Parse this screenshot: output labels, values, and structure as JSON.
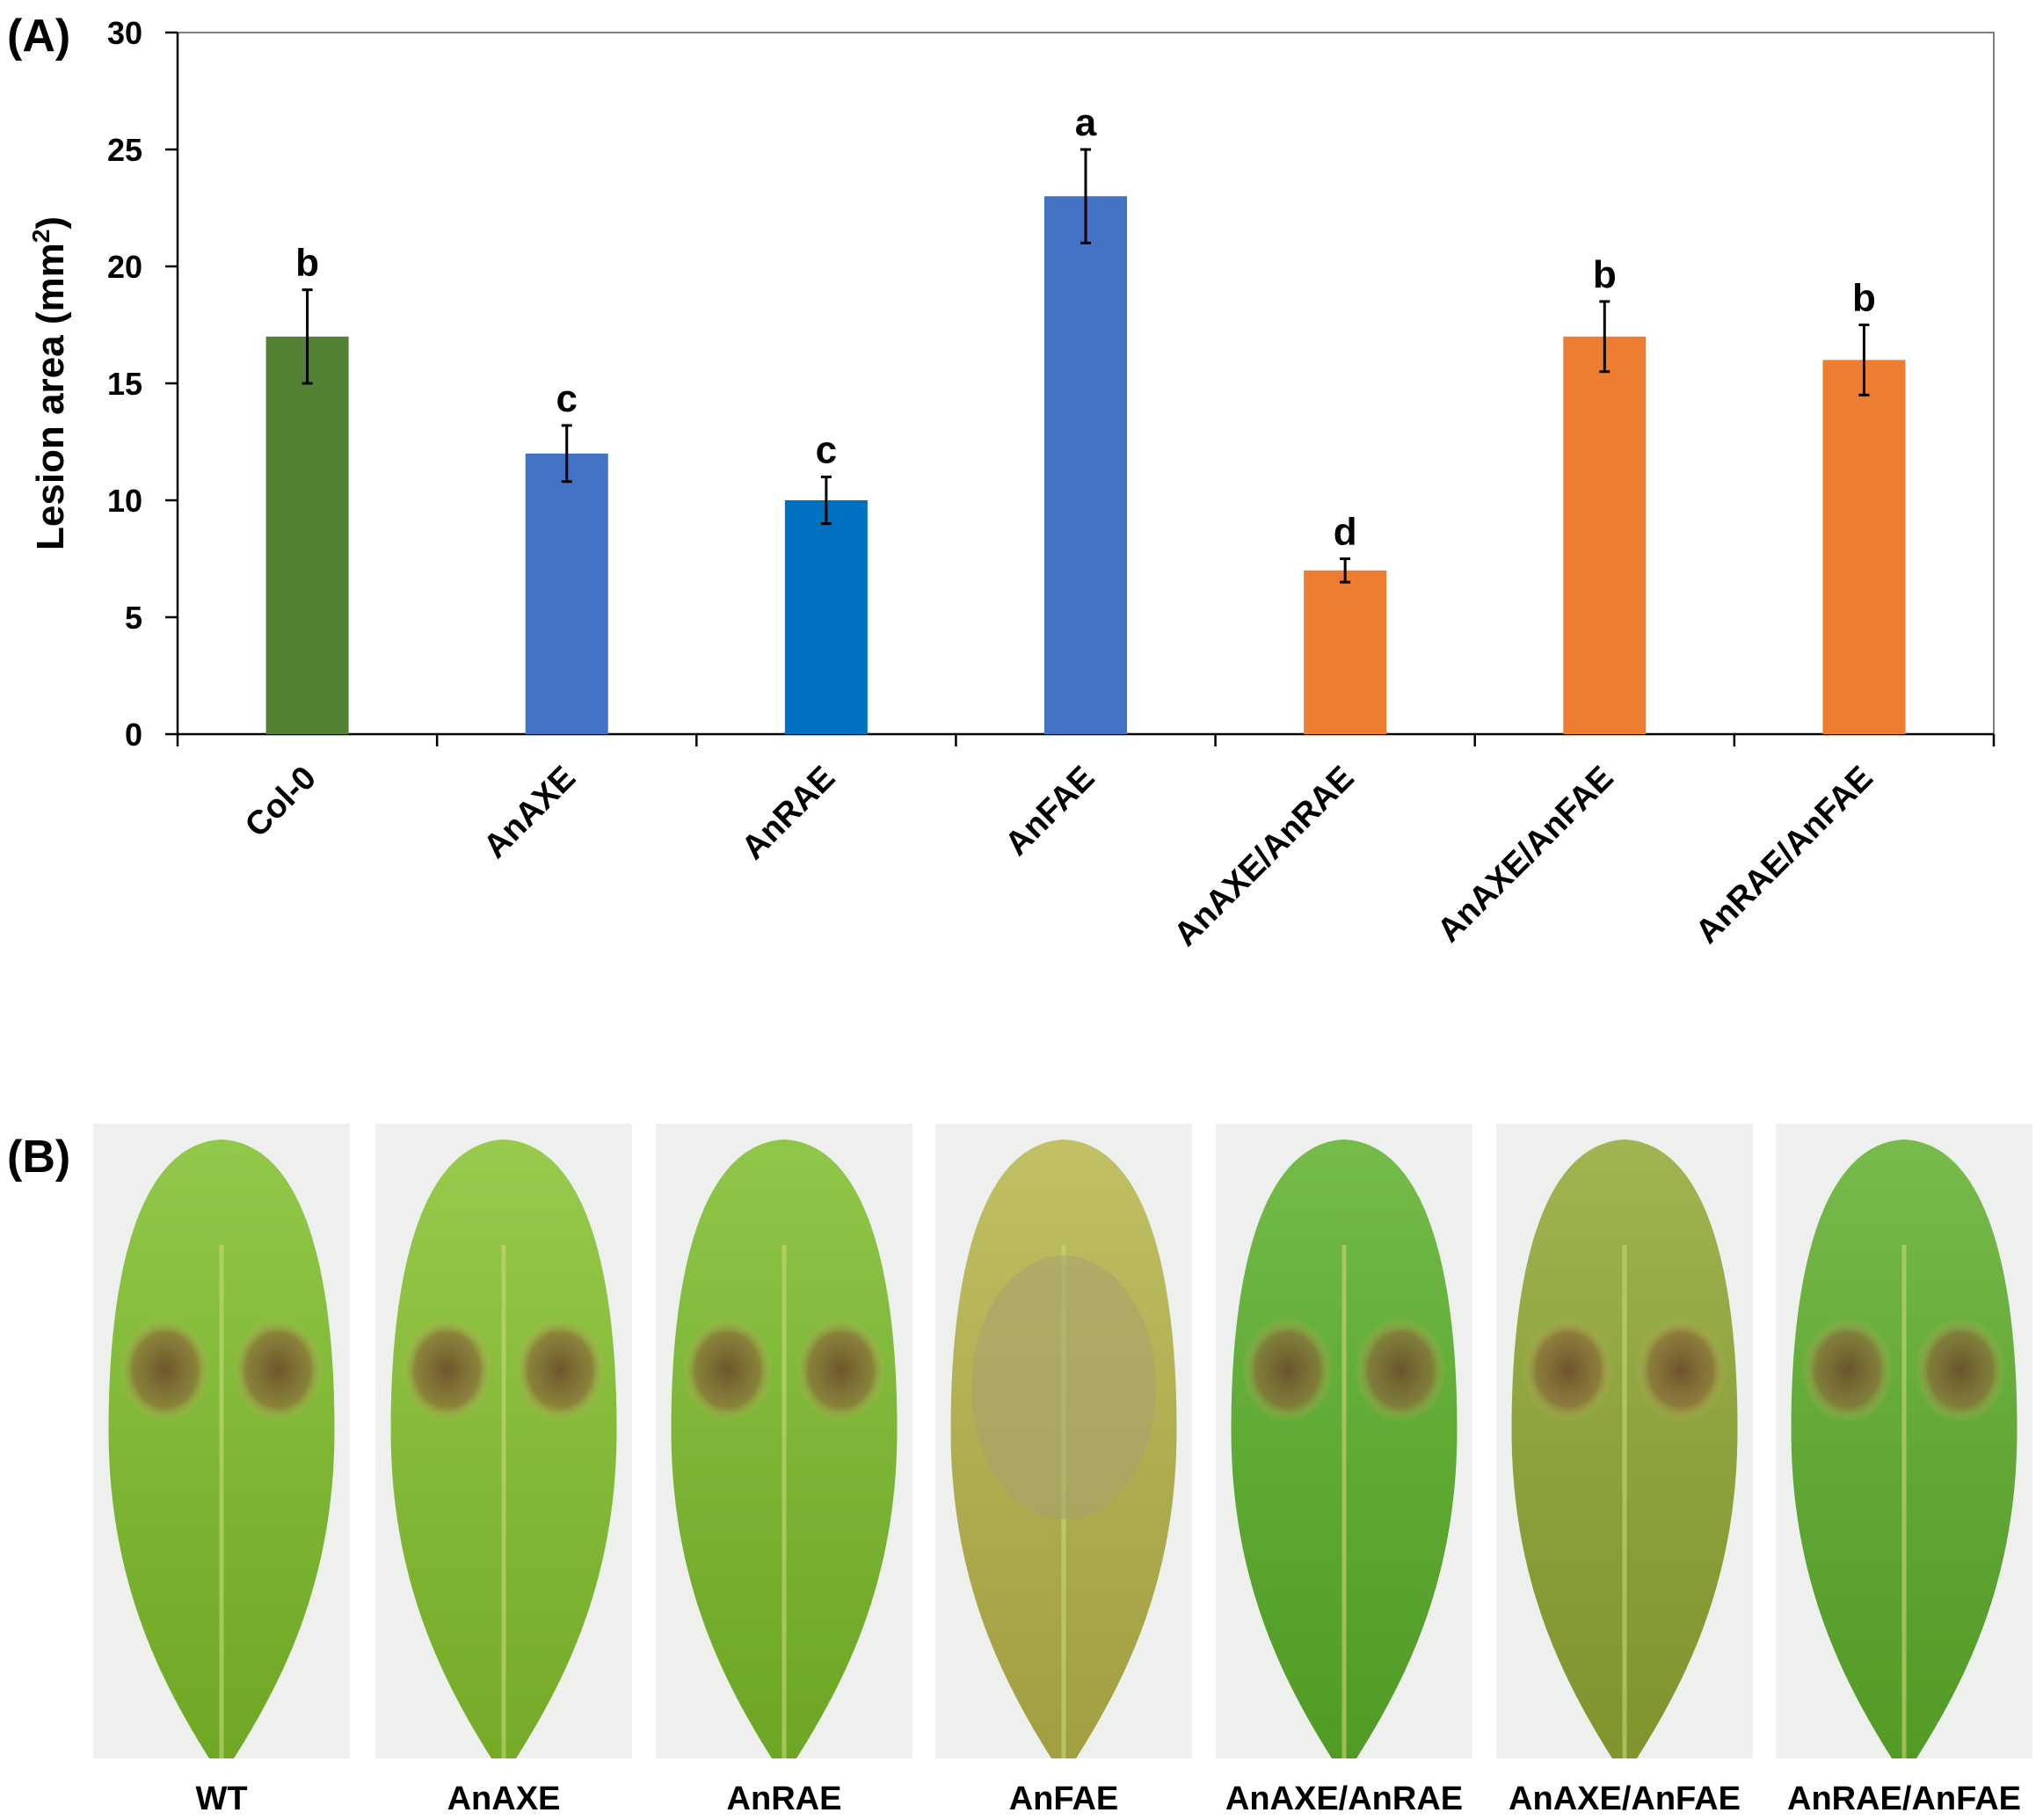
{
  "panel_a": {
    "label": "(A)"
  },
  "panel_b": {
    "label": "(B)"
  },
  "chart_data": {
    "type": "bar",
    "title": "",
    "xlabel": "",
    "ylabel": "Lesion area (mm",
    "ylabel_superscript": "2",
    "ylabel_close": ")",
    "ylim": [
      0,
      30
    ],
    "yticks": [
      0,
      5,
      10,
      15,
      20,
      25,
      30
    ],
    "grid": false,
    "categories": [
      "Col-0",
      "AnAXE",
      "AnRAE",
      "AnFAE",
      "AnAXE/AnRAE",
      "AnAXE/AnFAE",
      "AnRAE/AnFAE"
    ],
    "values": [
      17,
      12,
      10,
      23,
      7,
      17,
      16
    ],
    "errors": [
      2,
      1.2,
      1,
      2,
      0.5,
      1.5,
      1.5
    ],
    "significance": [
      "b",
      "c",
      "c",
      "a",
      "d",
      "b",
      "b"
    ],
    "colors": [
      "#548235",
      "#4472C4",
      "#0070C0",
      "#4472C4",
      "#ED7D31",
      "#ED7D31",
      "#ED7D31"
    ]
  },
  "leaves": [
    {
      "label": "WT",
      "base": "#7fbf2a",
      "lesions": 2,
      "lesion_color": "#8a7a40"
    },
    {
      "label": "AnAXE",
      "base": "#86c22e",
      "lesions": 2,
      "lesion_color": "#8a6a3a"
    },
    {
      "label": "AnRAE",
      "base": "#7cbd2a",
      "lesions": 2,
      "lesion_color": "#8a6a3a"
    },
    {
      "label": "AnFAE",
      "base": "#b7b54a",
      "lesions": 1,
      "lesion_color": "#a8a070"
    },
    {
      "label": "AnAXE/AnRAE",
      "base": "#5cb02a",
      "lesions": 2,
      "lesion_color": "#9a8048"
    },
    {
      "label": "AnAXE/AnFAE",
      "base": "#8fa833",
      "lesions": 2,
      "lesion_color": "#9a9060"
    },
    {
      "label": "AnRAE/AnFAE",
      "base": "#5faf2c",
      "lesions": 2,
      "lesion_color": "#8a6038"
    }
  ]
}
